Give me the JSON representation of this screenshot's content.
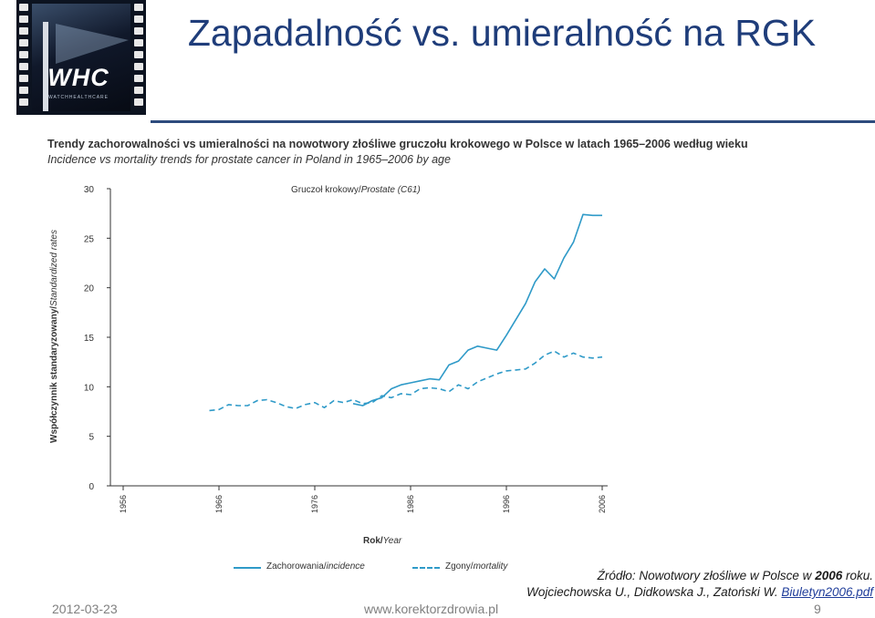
{
  "slide": {
    "title": "Zapadalność vs. umieralność na RGK",
    "date": "2012-03-23",
    "website": "www.korektorzdrowia.pl",
    "page_number": "9"
  },
  "logo": {
    "mark": "WHC",
    "subtitle": "WATCHHEALTHCARE"
  },
  "figure": {
    "title_pl": "Trendy zachorowalności vs umieralności na nowotwory złośliwe gruczołu krokowego w Polsce w latach 1965–2006 według wieku",
    "title_en": "Incidence vs mortality trends for prostate cancer in Poland in 1965–2006 by age",
    "panel_label_pl": "Gruczoł krokowy/",
    "panel_label_en": "Prostate (C61)",
    "ylabel_pl": "Współczynnik standaryzowany/",
    "ylabel_en": "Standardized rates",
    "xlabel_pl": "Rok/",
    "xlabel_en": "Year"
  },
  "legend": {
    "incidence_pl": "Zachorowania/",
    "incidence_en": "incidence",
    "mortality_pl": "Zgony/",
    "mortality_en": "mortality"
  },
  "source": {
    "prefix": "Źródło: Nowotwory złośliwe w Polsce w ",
    "year": "2006",
    "suffix": " roku.",
    "authors": "Wojciechowska U., Didkowska J., Zatoński W. ",
    "link": "Biuletyn2006.pdf"
  },
  "colors": {
    "title": "#1f3d7a",
    "series": "#2f9ac8",
    "axis": "#333333"
  },
  "chart_data": {
    "type": "line",
    "xlim": [
      1956,
      2006
    ],
    "ylim": [
      0,
      30
    ],
    "x_ticks": [
      1956,
      1966,
      1976,
      1986,
      1996,
      2006
    ],
    "y_ticks": [
      0,
      5,
      10,
      15,
      20,
      25,
      30
    ],
    "series": [
      {
        "name": "Zachorowania/incidence",
        "style": "solid",
        "x": [
          1980,
          1981,
          1982,
          1983,
          1984,
          1985,
          1986,
          1987,
          1988,
          1989,
          1990,
          1991,
          1992,
          1993,
          1994,
          1995,
          1996,
          1997,
          1998,
          1999,
          2000,
          2001,
          2002,
          2003,
          2004,
          2005,
          2006
        ],
        "y": [
          8.3,
          8.1,
          8.6,
          8.9,
          9.8,
          10.2,
          10.4,
          10.6,
          10.8,
          10.7,
          12.2,
          12.6,
          13.7,
          14.1,
          13.9,
          13.7,
          15.2,
          16.8,
          18.4,
          20.6,
          21.9,
          20.9,
          23.0,
          24.6,
          27.4,
          27.3,
          27.3
        ]
      },
      {
        "name": "Zgony/mortality",
        "style": "dashed",
        "x": [
          1965,
          1966,
          1967,
          1968,
          1969,
          1970,
          1971,
          1972,
          1973,
          1974,
          1975,
          1976,
          1977,
          1978,
          1979,
          1980,
          1981,
          1982,
          1983,
          1984,
          1985,
          1986,
          1987,
          1988,
          1989,
          1990,
          1991,
          1992,
          1993,
          1994,
          1995,
          1996,
          1997,
          1998,
          1999,
          2000,
          2001,
          2002,
          2003,
          2004,
          2005,
          2006
        ],
        "y": [
          7.6,
          7.7,
          8.2,
          8.1,
          8.1,
          8.6,
          8.7,
          8.4,
          8.0,
          7.8,
          8.2,
          8.4,
          7.9,
          8.6,
          8.4,
          8.7,
          8.3,
          8.4,
          9.1,
          8.9,
          9.3,
          9.2,
          9.8,
          9.9,
          9.8,
          9.5,
          10.2,
          9.8,
          10.5,
          10.9,
          11.3,
          11.6,
          11.7,
          11.8,
          12.4,
          13.2,
          13.6,
          13.0,
          13.4,
          13.0,
          12.9,
          13.0
        ]
      }
    ]
  }
}
